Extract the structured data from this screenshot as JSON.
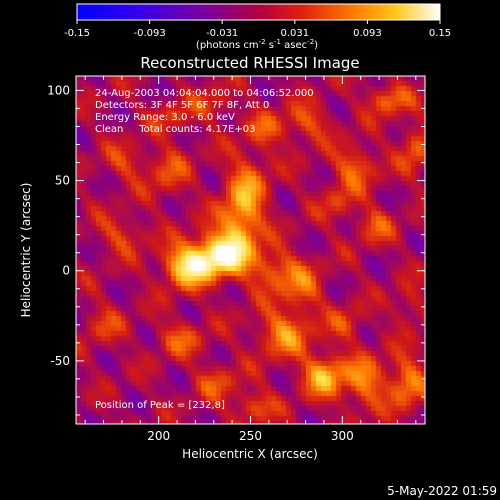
{
  "colorbar": {
    "ticks": [
      "-0.15",
      "-0.093",
      "-0.031",
      "0.031",
      "0.093",
      "0.15"
    ],
    "units_main": "(photons cm",
    "units_exp1": "-2",
    "units_mid1": " s",
    "units_exp2": "-1",
    "units_mid2": " asec",
    "units_exp3": "-2",
    "units_end": ")"
  },
  "title": "Reconstructed RHESSI Image",
  "annotations": {
    "time_range": "24-Aug-2003 04:04:04.000 to 04:06:52.000",
    "detectors": "Detectors: 3F 4F 5F 6F 7F 8F, Att 0",
    "energy": "Energy Range: 3.0 - 6.0 keV",
    "clean": "Clean     Total counts: 4.17E+03",
    "peak": "Position of Peak = [232,8]"
  },
  "footer_timestamp": "5-May-2022 01:59",
  "chart_data": {
    "type": "heatmap",
    "title": "Reconstructed RHESSI Image",
    "xlabel": "Heliocentric X (arcsec)",
    "ylabel": "Heliocentric Y (arcsec)",
    "xlim": [
      155,
      345
    ],
    "ylim": [
      -85,
      108
    ],
    "xticks": [
      200,
      250,
      300
    ],
    "yticks": [
      -50,
      0,
      50,
      100
    ],
    "colorscale_range": [
      -0.15,
      0.15
    ],
    "colormap": [
      "#0000ff",
      "#5a00e0",
      "#8a0080",
      "#d01818",
      "#ff7800",
      "#ffe040",
      "#ffffff"
    ],
    "peak_position": [
      232,
      8
    ],
    "sources": [
      {
        "x": 232,
        "y": 8,
        "intensity": 0.15,
        "sx": 11,
        "sy": 8
      },
      {
        "x": 215,
        "y": 2,
        "intensity": 0.12,
        "sx": 9,
        "sy": 8
      },
      {
        "x": 243,
        "y": 22,
        "intensity": 0.09,
        "sx": 8,
        "sy": 12
      },
      {
        "x": 248,
        "y": 45,
        "intensity": 0.08,
        "sx": 8,
        "sy": 14
      },
      {
        "x": 262,
        "y": 0,
        "intensity": 0.07,
        "sx": 9,
        "sy": 8
      },
      {
        "x": 278,
        "y": -10,
        "intensity": 0.06,
        "sx": 8,
        "sy": 10
      },
      {
        "x": 268,
        "y": -35,
        "intensity": 0.085,
        "sx": 10,
        "sy": 9
      },
      {
        "x": 290,
        "y": -58,
        "intensity": 0.11,
        "sx": 8,
        "sy": 8
      },
      {
        "x": 312,
        "y": -62,
        "intensity": 0.08,
        "sx": 8,
        "sy": 10
      },
      {
        "x": 335,
        "y": -62,
        "intensity": 0.085,
        "sx": 7,
        "sy": 10
      },
      {
        "x": 325,
        "y": 95,
        "intensity": 0.07,
        "sx": 8,
        "sy": 6
      },
      {
        "x": 307,
        "y": 58,
        "intensity": 0.07,
        "sx": 8,
        "sy": 8
      },
      {
        "x": 318,
        "y": 25,
        "intensity": 0.055,
        "sx": 7,
        "sy": 7
      },
      {
        "x": 340,
        "y": 68,
        "intensity": 0.06,
        "sx": 6,
        "sy": 10
      },
      {
        "x": 280,
        "y": 82,
        "intensity": 0.06,
        "sx": 9,
        "sy": 7
      },
      {
        "x": 298,
        "y": 38,
        "intensity": 0.045,
        "sx": 7,
        "sy": 7
      },
      {
        "x": 180,
        "y": 20,
        "intensity": 0.05,
        "sx": 9,
        "sy": 7
      },
      {
        "x": 182,
        "y": 60,
        "intensity": 0.045,
        "sx": 8,
        "sy": 7
      },
      {
        "x": 205,
        "y": 55,
        "intensity": 0.05,
        "sx": 8,
        "sy": 10
      },
      {
        "x": 170,
        "y": -30,
        "intensity": 0.04,
        "sx": 8,
        "sy": 8
      },
      {
        "x": 212,
        "y": -38,
        "intensity": 0.055,
        "sx": 9,
        "sy": 7
      },
      {
        "x": 232,
        "y": -62,
        "intensity": 0.05,
        "sx": 8,
        "sy": 7
      },
      {
        "x": 252,
        "y": -75,
        "intensity": 0.06,
        "sx": 8,
        "sy": 6
      },
      {
        "x": 302,
        "y": -30,
        "intensity": 0.045,
        "sx": 7,
        "sy": 7
      },
      {
        "x": 208,
        "y": 85,
        "intensity": 0.04,
        "sx": 8,
        "sy": 6
      },
      {
        "x": 230,
        "y": 92,
        "intensity": 0.045,
        "sx": 8,
        "sy": 6
      },
      {
        "x": 336,
        "y": -20,
        "intensity": 0.04,
        "sx": 6,
        "sy": 8
      },
      {
        "x": 258,
        "y": 78,
        "intensity": 0.05,
        "sx": 7,
        "sy": 7
      }
    ]
  }
}
